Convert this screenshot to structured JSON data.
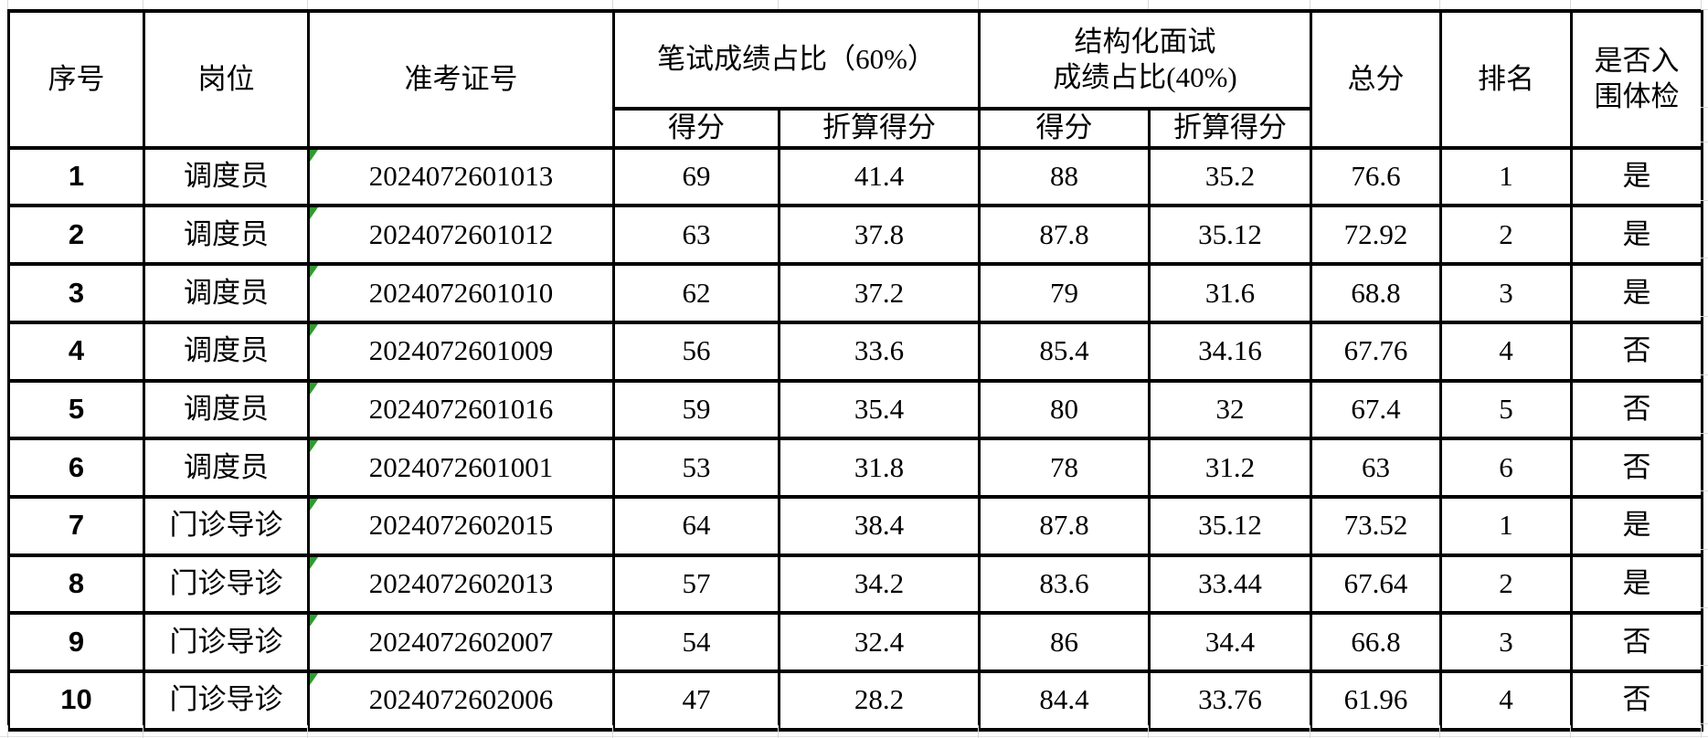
{
  "sheet": {
    "headers": {
      "serial": "序号",
      "post": "岗位",
      "ticket": "准考证号",
      "written_group": "笔试成绩占比（60%）",
      "interview_group_line1": "结构化面试",
      "interview_group_line2": "成绩占比(40%)",
      "score": "得分",
      "weighted_score": "折算得分",
      "total": "总分",
      "rank": "排名",
      "shortlist_line1": "是否入",
      "shortlist_line2": "围体检"
    },
    "rows": [
      {
        "no": "1",
        "post": "调度员",
        "ticket": "2024072601013",
        "written": "69",
        "written_weighted": "41.4",
        "interview": "88",
        "interview_weighted": "35.2",
        "total": "76.6",
        "rank": "1",
        "shortlisted": "是"
      },
      {
        "no": "2",
        "post": "调度员",
        "ticket": "2024072601012",
        "written": "63",
        "written_weighted": "37.8",
        "interview": "87.8",
        "interview_weighted": "35.12",
        "total": "72.92",
        "rank": "2",
        "shortlisted": "是"
      },
      {
        "no": "3",
        "post": "调度员",
        "ticket": "2024072601010",
        "written": "62",
        "written_weighted": "37.2",
        "interview": "79",
        "interview_weighted": "31.6",
        "total": "68.8",
        "rank": "3",
        "shortlisted": "是"
      },
      {
        "no": "4",
        "post": "调度员",
        "ticket": "2024072601009",
        "written": "56",
        "written_weighted": "33.6",
        "interview": "85.4",
        "interview_weighted": "34.16",
        "total": "67.76",
        "rank": "4",
        "shortlisted": "否"
      },
      {
        "no": "5",
        "post": "调度员",
        "ticket": "2024072601016",
        "written": "59",
        "written_weighted": "35.4",
        "interview": "80",
        "interview_weighted": "32",
        "total": "67.4",
        "rank": "5",
        "shortlisted": "否"
      },
      {
        "no": "6",
        "post": "调度员",
        "ticket": "2024072601001",
        "written": "53",
        "written_weighted": "31.8",
        "interview": "78",
        "interview_weighted": "31.2",
        "total": "63",
        "rank": "6",
        "shortlisted": "否"
      },
      {
        "no": "7",
        "post": "门诊导诊",
        "ticket": "2024072602015",
        "written": "64",
        "written_weighted": "38.4",
        "interview": "87.8",
        "interview_weighted": "35.12",
        "total": "73.52",
        "rank": "1",
        "shortlisted": "是"
      },
      {
        "no": "8",
        "post": "门诊导诊",
        "ticket": "2024072602013",
        "written": "57",
        "written_weighted": "34.2",
        "interview": "83.6",
        "interview_weighted": "33.44",
        "total": "67.64",
        "rank": "2",
        "shortlisted": "是"
      },
      {
        "no": "9",
        "post": "门诊导诊",
        "ticket": "2024072602007",
        "written": "54",
        "written_weighted": "32.4",
        "interview": "86",
        "interview_weighted": "34.4",
        "total": "66.8",
        "rank": "3",
        "shortlisted": "否"
      },
      {
        "no": "10",
        "post": "门诊导诊",
        "ticket": "2024072602006",
        "written": "47",
        "written_weighted": "28.2",
        "interview": "84.4",
        "interview_weighted": "33.76",
        "total": "61.96",
        "rank": "4",
        "shortlisted": "否"
      }
    ],
    "icons": {
      "stored_as_text_indicator": "green-corner-triangle"
    },
    "colors": {
      "indicator_green": "#339933",
      "table_border": "#000000",
      "sheet_grid_gray": "#d9d9d9",
      "text": "#000000",
      "background": "#ffffff"
    }
  }
}
